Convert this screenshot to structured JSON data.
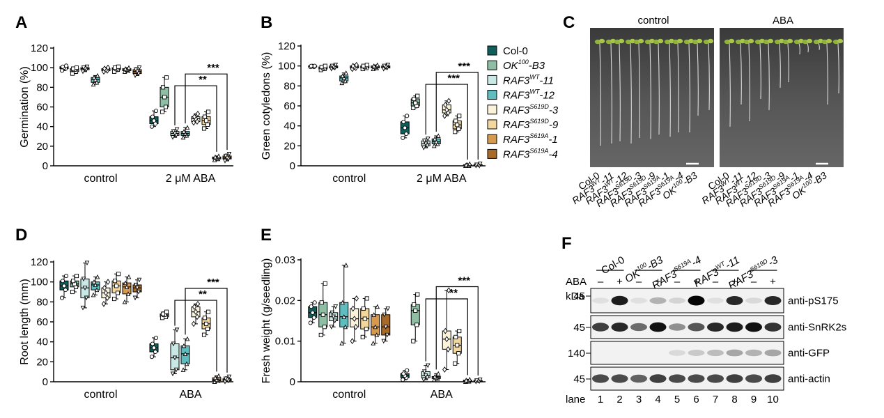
{
  "colors": {
    "col0": "#0e5e5a",
    "ok100": "#8ebea4",
    "wt11": "#c9e9e6",
    "wt12": "#5fbdbf",
    "s619d3": "#fbf2da",
    "s619d9": "#f4d79c",
    "s619a1": "#d7994e",
    "s619a4": "#a86a28"
  },
  "legend": [
    {
      "key": "col0",
      "base": "Col-0",
      "sup": "",
      "suffix": ""
    },
    {
      "key": "ok100",
      "base": "OK",
      "sup": "100",
      "suffix": "-B3"
    },
    {
      "key": "wt11",
      "base": "RAF3",
      "sup": "WT",
      "suffix": "-11"
    },
    {
      "key": "wt12",
      "base": "RAF3",
      "sup": "WT",
      "suffix": "-12"
    },
    {
      "key": "s619d3",
      "base": "RAF3",
      "sup": "S619D",
      "suffix": "-3"
    },
    {
      "key": "s619d9",
      "base": "RAF3",
      "sup": "S619D",
      "suffix": "-9"
    },
    {
      "key": "s619a1",
      "base": "RAF3",
      "sup": "S619A",
      "suffix": "-1"
    },
    {
      "key": "s619a4",
      "base": "RAF3",
      "sup": "S619A",
      "suffix": "-4"
    }
  ],
  "chart_data": [
    {
      "panel": "A",
      "type": "box",
      "ylabel": "Germination (%)",
      "ylim": [
        0,
        120
      ],
      "yticks": [
        0,
        20,
        40,
        60,
        80,
        100,
        120
      ],
      "categories": [
        "control",
        "2 μM ABA"
      ],
      "series_order": [
        "col0",
        "ok100",
        "wt11",
        "wt12",
        "s619d3",
        "s619d9",
        "s619a1",
        "s619a4"
      ],
      "groups": [
        {
          "category": "control",
          "boxes": [
            [
              97,
              99,
              100,
              101,
              102
            ],
            [
              94,
              96,
              98,
              99,
              100
            ],
            [
              96,
              98,
              99,
              100,
              101
            ],
            [
              83,
              85,
              88,
              90,
              92
            ],
            [
              96,
              97,
              98,
              99,
              100
            ],
            [
              96,
              98,
              99,
              100,
              101
            ],
            [
              96,
              97,
              98,
              99,
              100
            ],
            [
              92,
              94,
              96,
              98,
              100
            ]
          ]
        },
        {
          "category": "2 μM ABA",
          "boxes": [
            [
              40,
              43,
              46,
              50,
              56
            ],
            [
              55,
              60,
              70,
              80,
              90
            ],
            [
              29,
              31,
              33,
              35,
              37
            ],
            [
              29,
              31,
              33,
              35,
              39
            ],
            [
              44,
              45,
              48,
              50,
              53
            ],
            [
              38,
              42,
              46,
              50,
              55
            ],
            [
              6,
              7,
              8,
              9,
              10
            ],
            [
              5,
              7,
              8,
              10,
              12
            ]
          ]
        }
      ],
      "significance": [
        {
          "from": "wt11",
          "to": "s619a1",
          "label": "**"
        },
        {
          "from": "wt12",
          "to": "s619a4",
          "label": "***"
        }
      ]
    },
    {
      "panel": "B",
      "type": "box",
      "ylabel": "Green cotyledons (%)",
      "ylim": [
        0,
        120
      ],
      "yticks": [
        0,
        20,
        40,
        60,
        80,
        100,
        120
      ],
      "categories": [
        "control",
        "2 μM ABA"
      ],
      "series_order": [
        "col0",
        "ok100",
        "wt11",
        "wt12",
        "s619d3",
        "s619d9",
        "s619a1",
        "s619a4"
      ],
      "groups": [
        {
          "category": "control",
          "boxes": [
            [
              99,
              99,
              100,
              100,
              100
            ],
            [
              96,
              97,
              98,
              99,
              100
            ],
            [
              97,
              98,
              99,
              100,
              101
            ],
            [
              83,
              85,
              88,
              90,
              93
            ],
            [
              97,
              98,
              99,
              100,
              101
            ],
            [
              97,
              98,
              99,
              100,
              101
            ],
            [
              97,
              98,
              99,
              100,
              101
            ],
            [
              97,
              98,
              99,
              100,
              101
            ]
          ]
        },
        {
          "category": "2 μM ABA",
          "boxes": [
            [
              28,
              32,
              38,
              44,
              50
            ],
            [
              58,
              60,
              63,
              67,
              70
            ],
            [
              18,
              20,
              22,
              25,
              27
            ],
            [
              20,
              22,
              24,
              27,
              30
            ],
            [
              50,
              53,
              56,
              61,
              65
            ],
            [
              34,
              37,
              41,
              45,
              50
            ],
            [
              0,
              0,
              1,
              1,
              2
            ],
            [
              0,
              0,
              1,
              1,
              2
            ]
          ]
        }
      ],
      "significance": [
        {
          "from": "wt11",
          "to": "s619a1",
          "label": "***"
        },
        {
          "from": "wt12",
          "to": "s619a4",
          "label": "***"
        }
      ]
    },
    {
      "panel": "D",
      "type": "box",
      "ylabel": "Root length (mm)",
      "ylim": [
        0,
        120
      ],
      "yticks": [
        0,
        20,
        40,
        60,
        80,
        100,
        120
      ],
      "categories": [
        "control",
        "ABA"
      ],
      "series_order": [
        "col0",
        "ok100",
        "wt11",
        "wt12",
        "s619d3",
        "s619d9",
        "s619a1",
        "s619a4"
      ],
      "groups": [
        {
          "category": "control",
          "boxes": [
            [
              84,
              92,
              96,
              101,
              106
            ],
            [
              90,
              95,
              98,
              101,
              106
            ],
            [
              74,
              84,
              94,
              103,
              119
            ],
            [
              87,
              92,
              97,
              100,
              105
            ],
            [
              78,
              84,
              89,
              94,
              100
            ],
            [
              83,
              89,
              96,
              101,
              108
            ],
            [
              80,
              88,
              95,
              99,
              105
            ],
            [
              84,
              90,
              94,
              97,
              102
            ]
          ]
        },
        {
          "category": "ABA",
          "boxes": [
            [
              25,
              30,
              34,
              38,
              44
            ],
            [
              64,
              65,
              67,
              68,
              70
            ],
            [
              8,
              12,
              24,
              38,
              52
            ],
            [
              12,
              18,
              28,
              36,
              43
            ],
            [
              58,
              65,
              70,
              75,
              78
            ],
            [
              47,
              53,
              58,
              64,
              70
            ],
            [
              0,
              1,
              2,
              4,
              6
            ],
            [
              0,
              1,
              2,
              3,
              5
            ]
          ]
        }
      ],
      "significance": [
        {
          "from": "wt11",
          "to": "s619a1",
          "label": "**"
        },
        {
          "from": "wt12",
          "to": "s619a4",
          "label": "***"
        }
      ]
    },
    {
      "panel": "E",
      "type": "box",
      "ylabel": "Fresh weight  (g/seedling)",
      "ylim": [
        0,
        0.03
      ],
      "yticks": [
        0,
        0.01,
        0.02,
        0.03
      ],
      "categories": [
        "control",
        "ABA"
      ],
      "series_order": [
        "col0",
        "ok100",
        "wt11",
        "wt12",
        "s619d3",
        "s619d9",
        "s619a1",
        "s619a4"
      ],
      "groups": [
        {
          "category": "control",
          "boxes": [
            [
              0.0145,
              0.0158,
              0.017,
              0.0185,
              0.0195
            ],
            [
              0.0115,
              0.0135,
              0.0165,
              0.0195,
              0.0242
            ],
            [
              0.0135,
              0.015,
              0.016,
              0.017,
              0.0185
            ],
            [
              0.0095,
              0.0135,
              0.016,
              0.0195,
              0.0287
            ],
            [
              0.01,
              0.0135,
              0.0155,
              0.018,
              0.0205
            ],
            [
              0.011,
              0.013,
              0.0155,
              0.018,
              0.0205
            ],
            [
              0.0095,
              0.0115,
              0.0135,
              0.0165,
              0.0185
            ],
            [
              0.01,
              0.0115,
              0.0135,
              0.0165,
              0.018
            ]
          ]
        },
        {
          "category": "ABA",
          "boxes": [
            [
              0.0005,
              0.001,
              0.0015,
              0.002,
              0.0028
            ],
            [
              0.01,
              0.014,
              0.0175,
              0.019,
              0.0215
            ],
            [
              0.0005,
              0.001,
              0.0015,
              0.0025,
              0.004
            ],
            [
              0.0005,
              0.0008,
              0.001,
              0.0013,
              0.002
            ],
            [
              0.003,
              0.008,
              0.0105,
              0.0125,
              0.0225
            ],
            [
              0.0045,
              0.007,
              0.009,
              0.011,
              0.0125
            ],
            [
              0,
              0.0001,
              0.0002,
              0.0004,
              0.0006
            ],
            [
              0,
              0.0001,
              0.0002,
              0.0003,
              0.0005
            ]
          ]
        }
      ],
      "significance": [
        {
          "from": "wt11",
          "to": "s619a1",
          "label": "**"
        },
        {
          "from": "wt12",
          "to": "s619a4",
          "label": "***"
        }
      ]
    }
  ],
  "panelC": {
    "letter": "C",
    "photos": [
      {
        "label": "control"
      },
      {
        "label": "ABA"
      }
    ],
    "genotypes": [
      {
        "base": "Col-0",
        "sup": "",
        "suffix": ""
      },
      {
        "base": "RAF3",
        "sup": "WT",
        "suffix": "-11"
      },
      {
        "base": "RAF3",
        "sup": "WT",
        "suffix": "-12"
      },
      {
        "base": "RAF3",
        "sup": "S619D",
        "suffix": "-3"
      },
      {
        "base": "RAF3",
        "sup": "S619D",
        "suffix": "-9"
      },
      {
        "base": "RAF3",
        "sup": "S619A",
        "suffix": "-1"
      },
      {
        "base": "RAF3",
        "sup": "S619A",
        "suffix": "-4"
      },
      {
        "base": "OK",
        "sup": "100",
        "suffix": "-B3"
      }
    ]
  },
  "panelF": {
    "letter": "F",
    "genotypes": [
      {
        "base": "Col-0",
        "sup": "",
        "suffix": ""
      },
      {
        "base": "OK",
        "sup": "100",
        "suffix": "-B3"
      },
      {
        "base": "RAF3",
        "sup": "S619A",
        "suffix": "-4"
      },
      {
        "base": "RAF3",
        "sup": "WT",
        "suffix": "-11"
      },
      {
        "base": "RAF3",
        "sup": "S619D",
        "suffix": "-3"
      }
    ],
    "aba_label": "ABA",
    "aba_marks": [
      "–",
      "+",
      "–",
      "+",
      "–",
      "+",
      "–",
      "+",
      "–",
      "+"
    ],
    "kda_label": "kDa",
    "lane_label": "lane",
    "lanes": [
      "1",
      "2",
      "3",
      "4",
      "5",
      "6",
      "7",
      "8",
      "9",
      "10"
    ],
    "blots": [
      {
        "name": "anti-pS175",
        "kda": "45",
        "intensity": [
          0.05,
          0.9,
          0.05,
          0.25,
          0.1,
          1.0,
          0.05,
          0.85,
          0.08,
          0.85
        ]
      },
      {
        "name": "anti-SnRK2s",
        "kda": "45",
        "intensity": [
          0.75,
          0.85,
          0.55,
          0.95,
          0.4,
          0.65,
          0.85,
          0.9,
          0.95,
          0.8
        ]
      },
      {
        "name": "anti-GFP",
        "kda": "140",
        "intensity": [
          0,
          0,
          0,
          0,
          0.08,
          0.15,
          0.2,
          0.3,
          0.25,
          0.3
        ]
      },
      {
        "name": "anti-actin",
        "kda": "45",
        "intensity": [
          0.7,
          0.7,
          0.6,
          0.75,
          0.7,
          0.7,
          0.7,
          0.75,
          0.7,
          0.75
        ]
      }
    ]
  }
}
